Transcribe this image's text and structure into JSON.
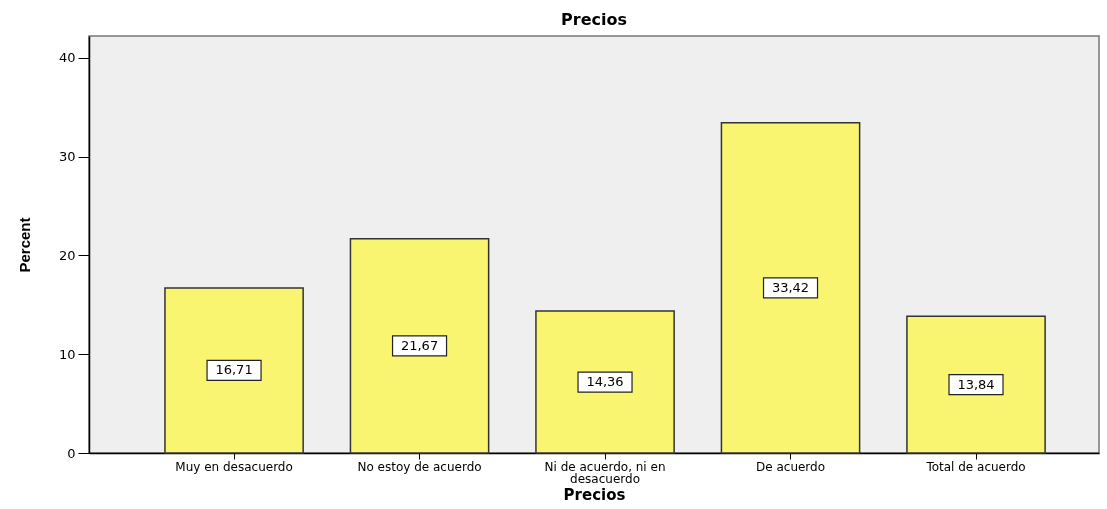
{
  "chart_data": {
    "type": "bar",
    "title": "Precios",
    "xlabel": "Precios",
    "ylabel": "Percent",
    "categories": [
      "Muy en desacuerdo",
      "No estoy de acuerdo",
      "Ni de acuerdo, ni en desacuerdo",
      "De acuerdo",
      "Total de acuerdo"
    ],
    "values": [
      16.71,
      21.67,
      14.36,
      33.42,
      13.84
    ],
    "value_labels": [
      "16,71",
      "21,67",
      "14,36",
      "33,42",
      "13,84"
    ],
    "color": "#f9f571",
    "ylim": [
      0,
      42.2
    ],
    "yticks": [
      0,
      10,
      20,
      30,
      40
    ]
  }
}
